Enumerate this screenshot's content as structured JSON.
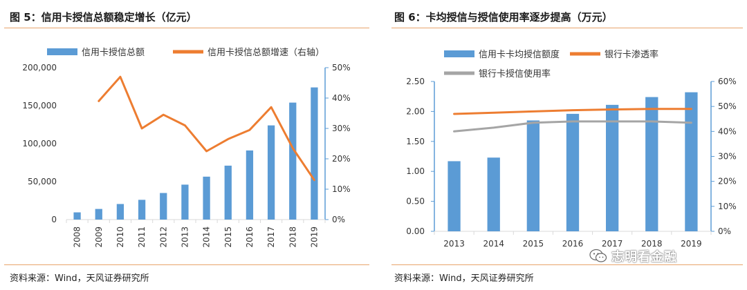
{
  "charts": [
    {
      "title": "图 5：信用卡授信总额稳定增长（亿元）",
      "source": "资料来源：Wind，天风证券研究所"
    },
    {
      "title": "图 6：卡均授信与授信使用率逐步提高（万元）",
      "source": "资料来源：Wind，天风证券研究所"
    }
  ],
  "watermark": "志明看金融",
  "colors": {
    "bar": "#5b9bd5",
    "line_orange": "#ed7d31",
    "line_gray": "#a5a5a5",
    "rule": "#e8a36a"
  },
  "chart_data": [
    {
      "type": "bar",
      "categories": [
        "2008",
        "2009",
        "2010",
        "2011",
        "2012",
        "2013",
        "2014",
        "2015",
        "2016",
        "2017",
        "2018",
        "2019"
      ],
      "series": [
        {
          "name": "信用卡授信总额",
          "type": "bar",
          "axis": "left",
          "values": [
            9500,
            14000,
            20500,
            26000,
            35000,
            46000,
            56500,
            71000,
            91000,
            124000,
            154000,
            174000
          ]
        },
        {
          "name": "信用卡授信总额增速（右轴）",
          "type": "line",
          "axis": "right",
          "values": [
            null,
            39,
            47,
            30,
            34.5,
            31,
            22.5,
            26.5,
            29.5,
            37,
            23.5,
            13
          ]
        }
      ],
      "yleft": {
        "min": 0,
        "max": 200000,
        "ticks": [
          "0",
          "50,000",
          "100,000",
          "150,000",
          "200,000"
        ]
      },
      "yright": {
        "min": 0,
        "max": 50,
        "ticks": [
          "0%",
          "10%",
          "20%",
          "30%",
          "40%",
          "50%"
        ]
      },
      "legend": "top"
    },
    {
      "type": "bar",
      "categories": [
        "2013",
        "2014",
        "2015",
        "2016",
        "2017",
        "2018",
        "2019"
      ],
      "series": [
        {
          "name": "信用卡卡均授信额度",
          "type": "bar",
          "axis": "left",
          "values": [
            1.17,
            1.23,
            1.85,
            1.96,
            2.11,
            2.24,
            2.32
          ]
        },
        {
          "name": "银行卡渗透率",
          "type": "line",
          "axis": "right",
          "values": [
            47,
            47.5,
            48,
            48.5,
            48.8,
            49,
            49
          ]
        },
        {
          "name": "银行卡授信使用率",
          "type": "line",
          "axis": "right",
          "values": [
            40,
            41.5,
            43.5,
            44,
            44,
            44,
            43.5
          ]
        }
      ],
      "yleft": {
        "min": 0,
        "max": 2.5,
        "ticks": [
          "0.00",
          "0.50",
          "1.00",
          "1.50",
          "2.00",
          "2.50"
        ]
      },
      "yright": {
        "min": 0,
        "max": 60,
        "ticks": [
          "0%",
          "10%",
          "20%",
          "30%",
          "40%",
          "50%",
          "60%"
        ]
      },
      "legend": "top"
    }
  ]
}
